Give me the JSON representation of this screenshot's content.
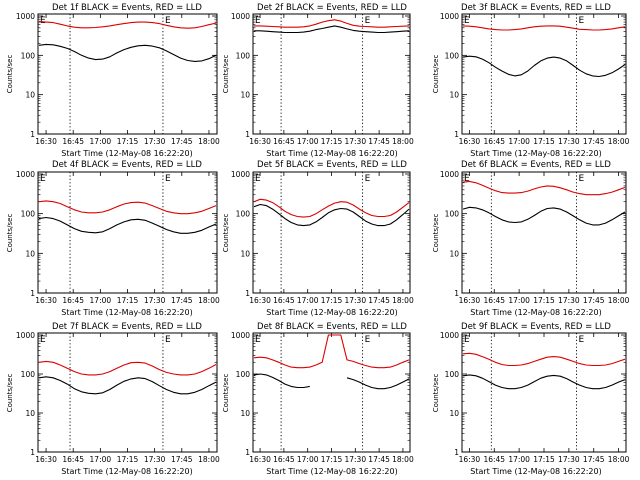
{
  "chart_data": [
    {
      "type": "line",
      "title": "Det 1f BLACK = Events, RED = LLD",
      "xlabel": "Start Time (12-May-08 16:22:20)",
      "ylabel": "Counts/sec",
      "yscale": "log",
      "ylim": [
        1,
        1000
      ],
      "y_tick_labels": [
        "1",
        "10",
        "100",
        "1000"
      ],
      "x_tick_labels": [
        "16:30",
        "16:45",
        "17:00",
        "17:15",
        "17:30",
        "17:45",
        "18:00"
      ],
      "flag_label": "E",
      "series": [
        {
          "name": "BLACK",
          "color": "#000000",
          "values": [
            180,
            190,
            185,
            170,
            150,
            125,
            100,
            85,
            78,
            80,
            92,
            115,
            140,
            160,
            175,
            180,
            172,
            155,
            130,
            105,
            85,
            74,
            70,
            72,
            82,
            100
          ]
        },
        {
          "name": "RED",
          "color": "#dd0000",
          "values": [
            720,
            700,
            680,
            620,
            560,
            520,
            500,
            500,
            510,
            530,
            560,
            600,
            640,
            680,
            700,
            700,
            680,
            640,
            580,
            530,
            500,
            490,
            500,
            540,
            600,
            660
          ]
        }
      ]
    },
    {
      "type": "line",
      "title": "Det 2f BLACK = Events, RED = LLD",
      "xlabel": "Start Time (12-May-08 16:22:20)",
      "ylabel": "Counts/sec",
      "yscale": "log",
      "ylim": [
        1,
        1000
      ],
      "y_tick_labels": [
        "1",
        "10",
        "100",
        "1000"
      ],
      "x_tick_labels": [
        "16:30",
        "16:45",
        "17:00",
        "17:15",
        "17:30",
        "17:45",
        "18:00"
      ],
      "flag_label": "E",
      "series": [
        {
          "name": "BLACK",
          "color": "#000000",
          "values": [
            420,
            420,
            410,
            400,
            390,
            380,
            380,
            380,
            390,
            410,
            450,
            480,
            520,
            560,
            520,
            470,
            430,
            410,
            400,
            390,
            380,
            380,
            390,
            400,
            410,
            420
          ]
        },
        {
          "name": "RED",
          "color": "#dd0000",
          "values": [
            560,
            560,
            550,
            540,
            530,
            520,
            520,
            520,
            530,
            560,
            620,
            700,
            760,
            800,
            740,
            650,
            580,
            550,
            540,
            530,
            520,
            520,
            530,
            540,
            550,
            560
          ]
        }
      ]
    },
    {
      "type": "line",
      "title": "Det 3f BLACK = Events, RED = LLD",
      "xlabel": "Start Time (12-May-08 16:22:20)",
      "ylabel": "Counts/sec",
      "yscale": "log",
      "ylim": [
        1,
        1000
      ],
      "y_tick_labels": [
        "1",
        "10",
        "100",
        "1000"
      ],
      "x_tick_labels": [
        "16:30",
        "16:45",
        "17:00",
        "17:15",
        "17:30",
        "17:45",
        "18:00"
      ],
      "flag_label": "E",
      "series": [
        {
          "name": "BLACK",
          "color": "#000000",
          "values": [
            90,
            95,
            92,
            80,
            65,
            50,
            40,
            33,
            30,
            32,
            40,
            55,
            72,
            85,
            90,
            85,
            72,
            55,
            42,
            34,
            30,
            29,
            31,
            36,
            45,
            58
          ]
        },
        {
          "name": "RED",
          "color": "#dd0000",
          "values": [
            560,
            550,
            530,
            500,
            470,
            450,
            440,
            440,
            450,
            470,
            500,
            530,
            550,
            560,
            560,
            550,
            520,
            490,
            460,
            450,
            440,
            440,
            450,
            470,
            500,
            530
          ]
        }
      ]
    },
    {
      "type": "line",
      "title": "Det 4f BLACK = Events, RED = LLD",
      "xlabel": "Start Time (12-May-08 16:22:20)",
      "ylabel": "Counts/sec",
      "yscale": "log",
      "ylim": [
        1,
        1000
      ],
      "y_tick_labels": [
        "1",
        "10",
        "100",
        "1000"
      ],
      "x_tick_labels": [
        "16:30",
        "16:45",
        "17:00",
        "17:15",
        "17:30",
        "17:45",
        "18:00"
      ],
      "flag_label": "E",
      "series": [
        {
          "name": "BLACK",
          "color": "#000000",
          "values": [
            75,
            80,
            75,
            65,
            52,
            42,
            36,
            34,
            33,
            35,
            42,
            52,
            62,
            70,
            72,
            68,
            58,
            48,
            40,
            35,
            32,
            32,
            34,
            38,
            46,
            55
          ]
        },
        {
          "name": "RED",
          "color": "#dd0000",
          "values": [
            200,
            210,
            200,
            180,
            150,
            125,
            110,
            105,
            105,
            110,
            125,
            150,
            175,
            190,
            195,
            185,
            160,
            135,
            115,
            105,
            100,
            100,
            105,
            115,
            135,
            160
          ]
        }
      ]
    },
    {
      "type": "line",
      "title": "Det 5f BLACK = Events, RED = LLD",
      "xlabel": "Start Time (12-May-08 16:22:20)",
      "ylabel": "Counts/sec",
      "yscale": "log",
      "ylim": [
        1,
        1000
      ],
      "y_tick_labels": [
        "1",
        "10",
        "100",
        "1000"
      ],
      "x_tick_labels": [
        "16:30",
        "16:45",
        "17:00",
        "17:15",
        "17:30",
        "17:45",
        "18:00"
      ],
      "flag_label": "E",
      "series": [
        {
          "name": "BLACK",
          "color": "#000000",
          "values": [
            150,
            170,
            160,
            130,
            100,
            75,
            60,
            52,
            50,
            52,
            62,
            80,
            105,
            125,
            135,
            130,
            110,
            85,
            65,
            55,
            50,
            50,
            55,
            70,
            95,
            130
          ]
        },
        {
          "name": "RED",
          "color": "#dd0000",
          "values": [
            200,
            230,
            220,
            190,
            150,
            115,
            95,
            85,
            82,
            85,
            100,
            125,
            155,
            185,
            200,
            195,
            165,
            130,
            105,
            90,
            85,
            85,
            90,
            110,
            145,
            190
          ]
        }
      ]
    },
    {
      "type": "line",
      "title": "Det 6f BLACK = Events, RED = LLD",
      "xlabel": "Start Time (12-May-08 16:22:20)",
      "ylabel": "Counts/sec",
      "yscale": "log",
      "ylim": [
        1,
        1000
      ],
      "y_tick_labels": [
        "1",
        "10",
        "100",
        "1000"
      ],
      "x_tick_labels": [
        "16:30",
        "16:45",
        "17:00",
        "17:15",
        "17:30",
        "17:45",
        "18:00"
      ],
      "flag_label": "E",
      "series": [
        {
          "name": "BLACK",
          "color": "#000000",
          "values": [
            130,
            145,
            140,
            125,
            105,
            85,
            70,
            62,
            60,
            62,
            72,
            90,
            115,
            135,
            140,
            130,
            110,
            88,
            70,
            58,
            52,
            52,
            58,
            70,
            88,
            110
          ]
        },
        {
          "name": "RED",
          "color": "#dd0000",
          "values": [
            620,
            650,
            600,
            520,
            440,
            380,
            340,
            330,
            330,
            340,
            370,
            420,
            470,
            500,
            490,
            450,
            400,
            350,
            320,
            300,
            300,
            300,
            320,
            350,
            400,
            460
          ]
        }
      ]
    },
    {
      "type": "line",
      "title": "Det 7f BLACK = Events, RED = LLD",
      "xlabel": "Start Time (12-May-08 16:22:20)",
      "ylabel": "Counts/sec",
      "yscale": "log",
      "ylim": [
        1,
        1000
      ],
      "y_tick_labels": [
        "1",
        "10",
        "100",
        "1000"
      ],
      "x_tick_labels": [
        "16:30",
        "16:45",
        "17:00",
        "17:15",
        "17:30",
        "17:45",
        "18:00"
      ],
      "flag_label": "E",
      "series": [
        {
          "name": "BLACK",
          "color": "#000000",
          "values": [
            80,
            85,
            80,
            68,
            55,
            42,
            35,
            32,
            31,
            33,
            40,
            52,
            65,
            75,
            80,
            76,
            64,
            50,
            40,
            34,
            31,
            31,
            34,
            40,
            50,
            62
          ]
        },
        {
          "name": "RED",
          "color": "#dd0000",
          "values": [
            200,
            210,
            200,
            170,
            140,
            115,
            100,
            95,
            95,
            100,
            115,
            140,
            170,
            195,
            200,
            190,
            160,
            130,
            110,
            100,
            95,
            95,
            100,
            115,
            140,
            175
          ]
        }
      ]
    },
    {
      "type": "line",
      "title": "Det 8f BLACK = Events, RED = LLD",
      "xlabel": "Start Time (12-May-08 16:22:20)",
      "ylabel": "Counts/sec",
      "yscale": "log",
      "ylim": [
        1,
        1000
      ],
      "y_tick_labels": [
        "1",
        "10",
        "100",
        "1000"
      ],
      "x_tick_labels": [
        "16:30",
        "16:45",
        "17:00",
        "17:15",
        "17:30",
        "17:45",
        "18:00"
      ],
      "flag_label": "E",
      "series": [
        {
          "name": "BLACK",
          "color": "#000000",
          "values": [
            95,
            100,
            95,
            82,
            68,
            55,
            48,
            45,
            45,
            48,
            null,
            null,
            null,
            null,
            null,
            80,
            72,
            62,
            52,
            45,
            42,
            42,
            45,
            52,
            62,
            75
          ]
        },
        {
          "name": "RED",
          "color": "#dd0000",
          "values": [
            260,
            270,
            260,
            230,
            200,
            170,
            150,
            145,
            145,
            150,
            170,
            200,
            1000,
            1000,
            1000,
            230,
            210,
            185,
            165,
            150,
            145,
            145,
            150,
            170,
            200,
            230
          ]
        }
      ]
    },
    {
      "type": "line",
      "title": "Det 9f BLACK = Events, RED = LLD",
      "xlabel": "Start Time (12-May-08 16:22:20)",
      "ylabel": "Counts/sec",
      "yscale": "log",
      "ylim": [
        1,
        1000
      ],
      "y_tick_labels": [
        "1",
        "10",
        "100",
        "1000"
      ],
      "x_tick_labels": [
        "16:30",
        "16:45",
        "17:00",
        "17:15",
        "17:30",
        "17:45",
        "18:00"
      ],
      "flag_label": "E",
      "series": [
        {
          "name": "BLACK",
          "color": "#000000",
          "values": [
            90,
            95,
            90,
            78,
            64,
            52,
            45,
            42,
            42,
            45,
            52,
            64,
            78,
            88,
            92,
            88,
            76,
            62,
            52,
            45,
            42,
            42,
            45,
            52,
            62,
            72
          ]
        },
        {
          "name": "RED",
          "color": "#dd0000",
          "values": [
            330,
            340,
            320,
            280,
            240,
            200,
            175,
            165,
            165,
            170,
            185,
            210,
            240,
            270,
            280,
            270,
            240,
            210,
            185,
            170,
            165,
            165,
            170,
            185,
            210,
            240
          ]
        }
      ]
    }
  ]
}
